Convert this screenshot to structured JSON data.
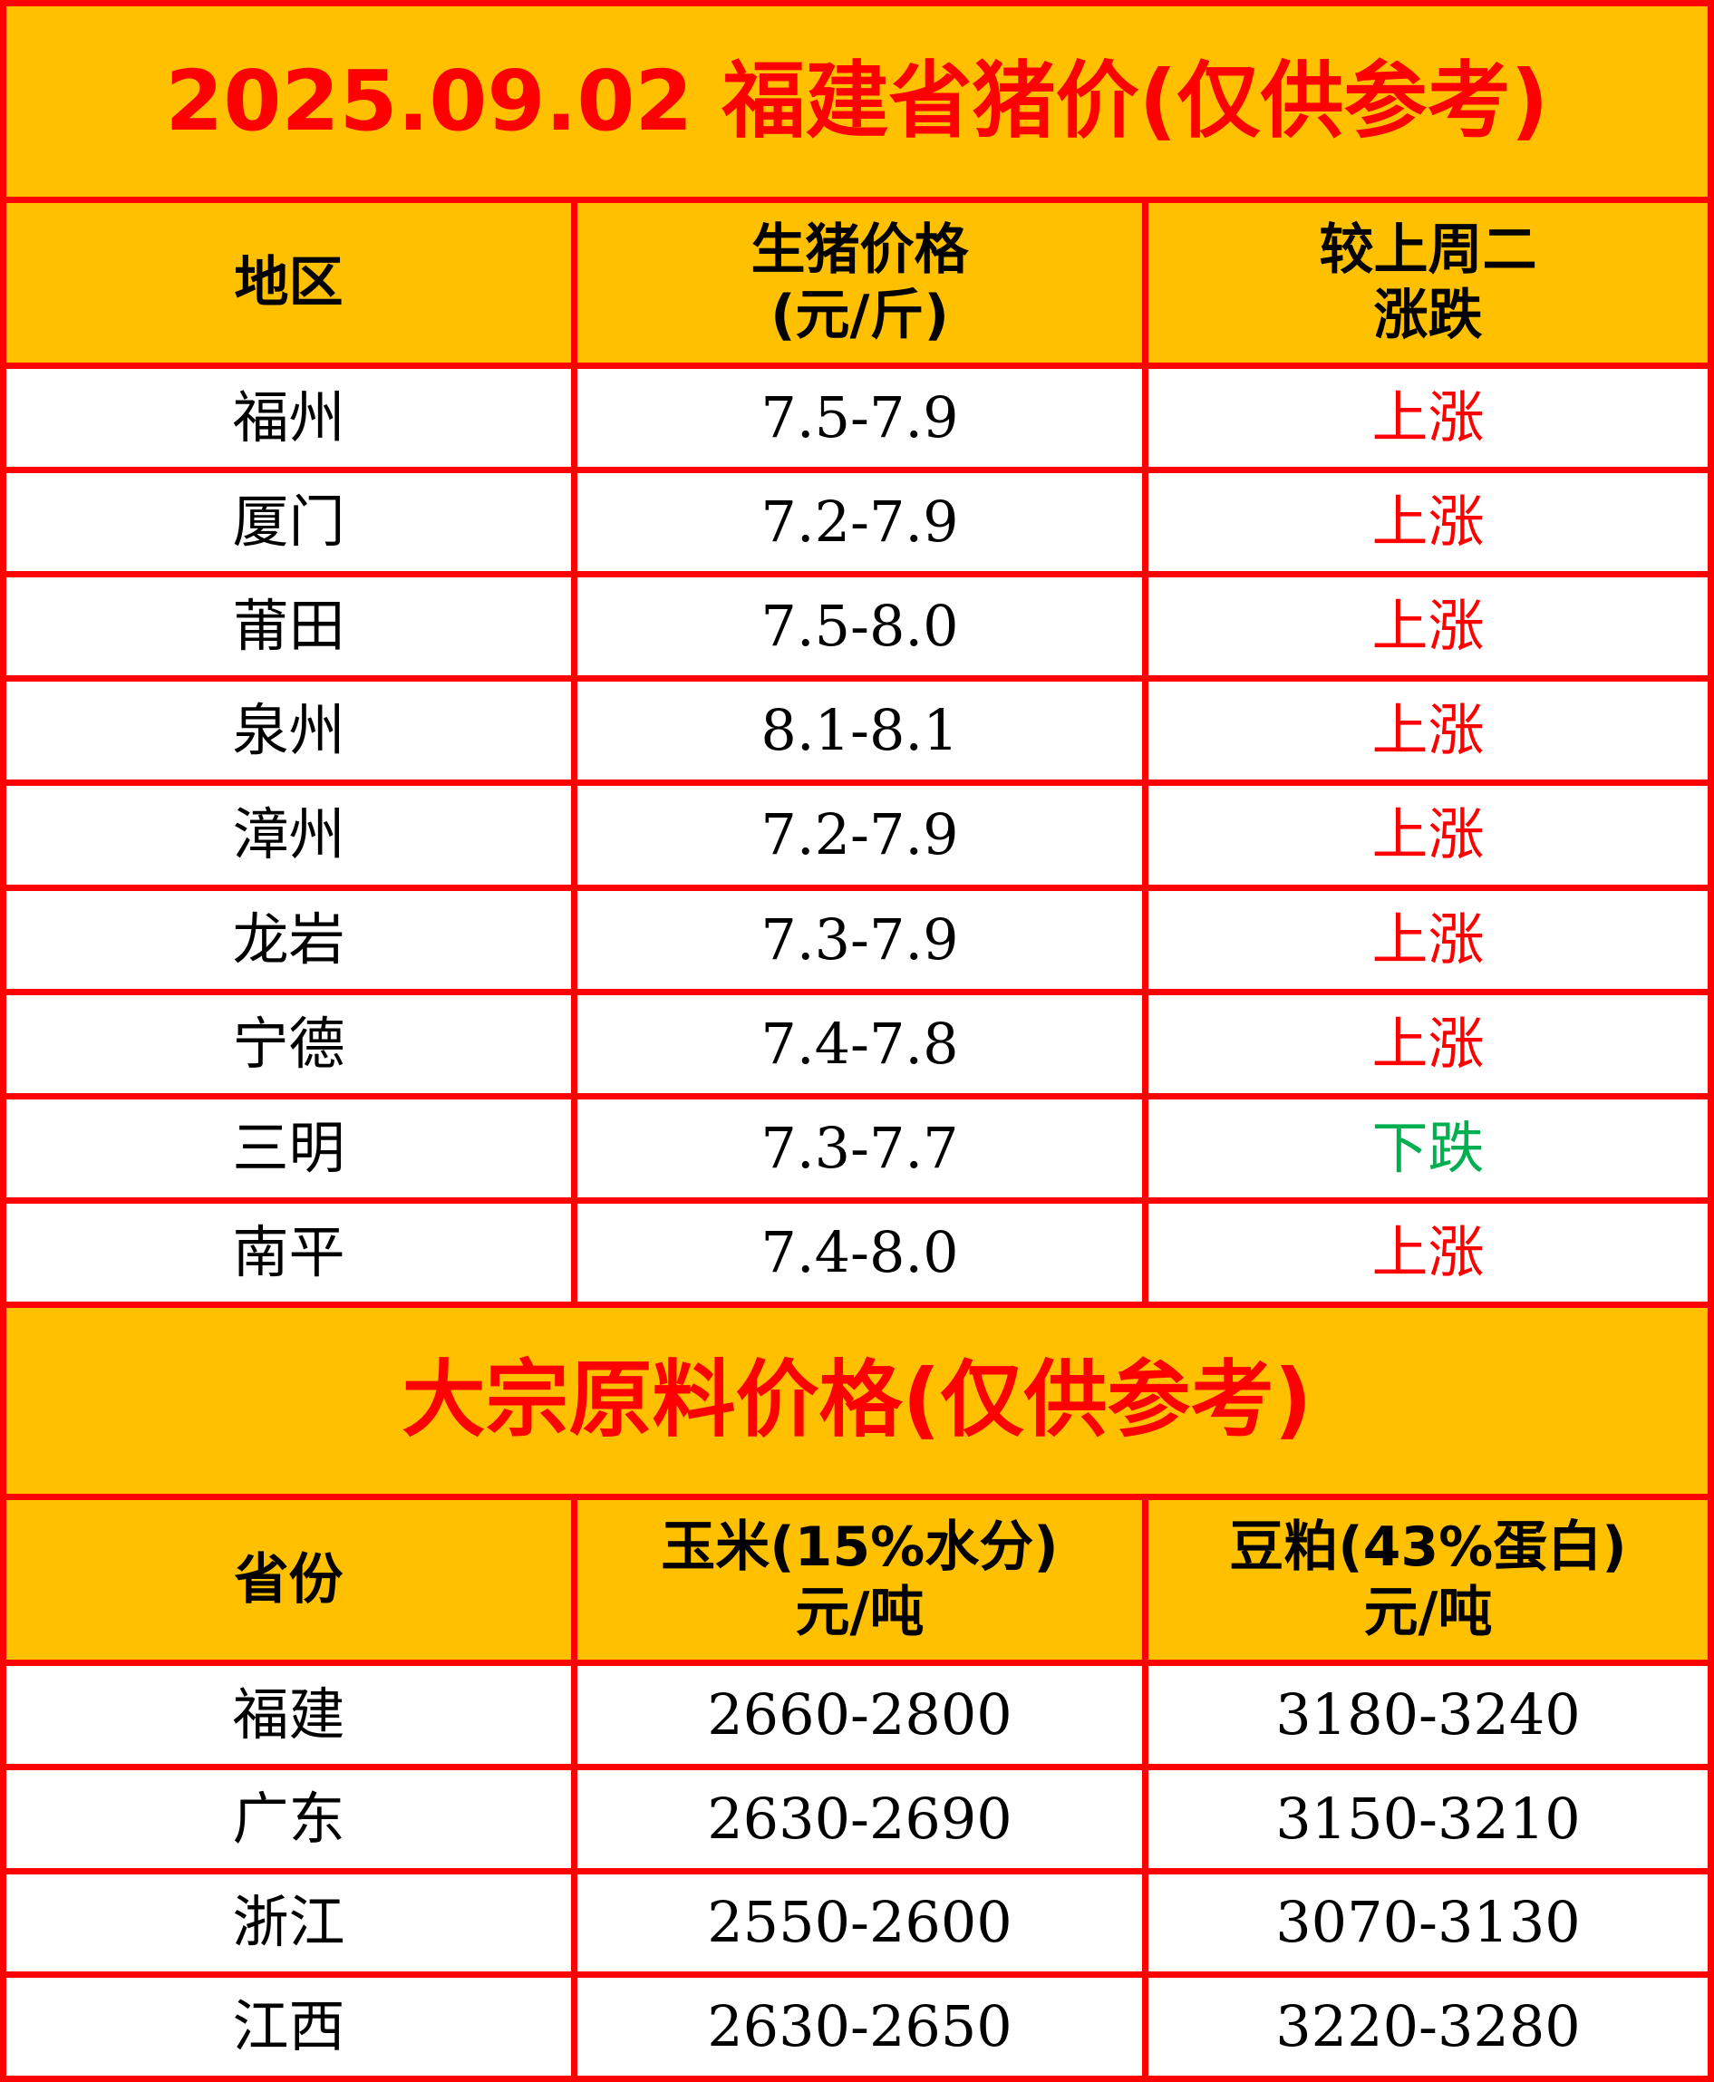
{
  "pork": {
    "title": "2025.09.02 福建省猪价(仅供参考)",
    "headers": [
      {
        "line1": "地区",
        "line2": ""
      },
      {
        "line1": "生猪价格",
        "line2": "(元/斤)"
      },
      {
        "line1": "较上周二",
        "line2": "涨跌"
      }
    ],
    "rows": [
      {
        "region": "福州",
        "price": "7.5-7.9",
        "change": "上涨",
        "trend": "up"
      },
      {
        "region": "厦门",
        "price": "7.2-7.9",
        "change": "上涨",
        "trend": "up"
      },
      {
        "region": "莆田",
        "price": "7.5-8.0",
        "change": "上涨",
        "trend": "up"
      },
      {
        "region": "泉州",
        "price": "8.1-8.1",
        "change": "上涨",
        "trend": "up"
      },
      {
        "region": "漳州",
        "price": "7.2-7.9",
        "change": "上涨",
        "trend": "up"
      },
      {
        "region": "龙岩",
        "price": "7.3-7.9",
        "change": "上涨",
        "trend": "up"
      },
      {
        "region": "宁德",
        "price": "7.4-7.8",
        "change": "上涨",
        "trend": "up"
      },
      {
        "region": "三明",
        "price": "7.3-7.7",
        "change": "下跌",
        "trend": "down"
      },
      {
        "region": "南平",
        "price": "7.4-8.0",
        "change": "上涨",
        "trend": "up"
      }
    ]
  },
  "feed": {
    "title": "大宗原料价格(仅供参考)",
    "headers": [
      {
        "line1": "省份",
        "line2": ""
      },
      {
        "line1": "玉米(15%水分)",
        "line2": "元/吨"
      },
      {
        "line1": "豆粕(43%蛋白)",
        "line2": "元/吨"
      }
    ],
    "rows": [
      {
        "province": "福建",
        "corn": "2660-2800",
        "soymeal": "3180-3240"
      },
      {
        "province": "广东",
        "corn": "2630-2690",
        "soymeal": "3150-3210"
      },
      {
        "province": "浙江",
        "corn": "2550-2600",
        "soymeal": "3070-3130"
      },
      {
        "province": "江西",
        "corn": "2630-2650",
        "soymeal": "3220-3280"
      }
    ]
  },
  "colors": {
    "border": "#FF0000",
    "header_bg": "#FFC000",
    "up": "#FF0000",
    "down": "#00B050"
  }
}
